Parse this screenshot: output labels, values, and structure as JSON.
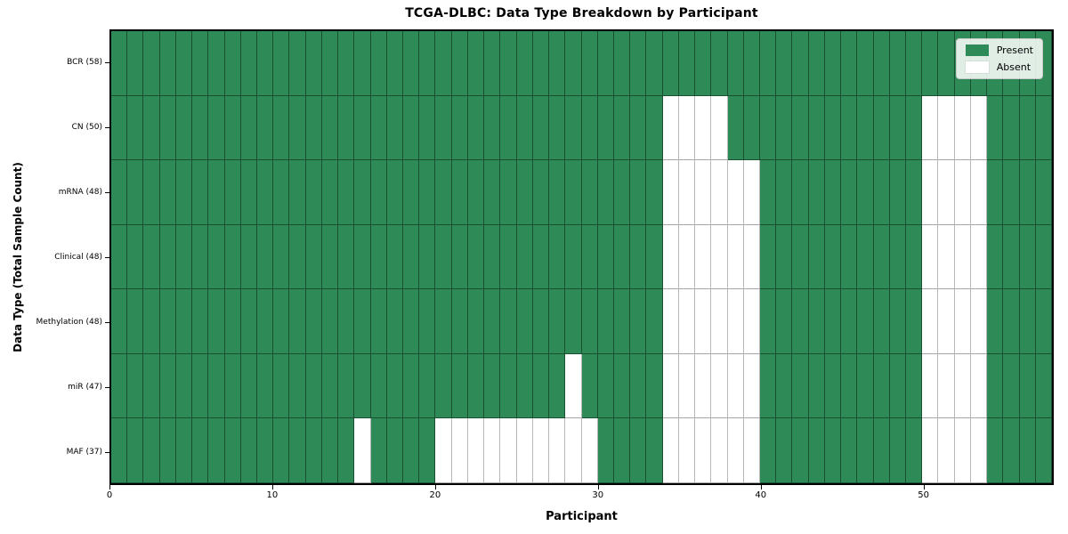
{
  "title": "TCGA-DLBC: Data Type Breakdown by Participant",
  "x_axis": {
    "label": "Participant",
    "tick_labels": [
      "0",
      "10",
      "20",
      "30",
      "40",
      "50"
    ]
  },
  "y_axis": {
    "label": "Data Type (Total Sample Count)"
  },
  "legend": {
    "present_label": "Present",
    "absent_label": "Absent"
  },
  "colors": {
    "present": "#2e8b57",
    "absent": "#ffffff"
  },
  "chart_data": {
    "type": "heatmap",
    "title": "TCGA-DLBC: Data Type Breakdown by Participant",
    "xlabel": "Participant",
    "ylabel": "Data Type (Total Sample Count)",
    "n_participants": 58,
    "x_range": [
      0,
      58
    ],
    "x_ticks": [
      0,
      10,
      20,
      30,
      40,
      50
    ],
    "grid": true,
    "legend_position": "upper right",
    "legend": [
      {
        "label": "Present",
        "color": "#2e8b57"
      },
      {
        "label": "Absent",
        "color": "#ffffff"
      }
    ],
    "rows": [
      {
        "label": "BCR (58)",
        "data_type": "BCR",
        "total_samples": 58,
        "absent_participants": []
      },
      {
        "label": "CN (50)",
        "data_type": "CN",
        "total_samples": 50,
        "absent_participants": [
          34,
          35,
          36,
          37,
          50,
          51,
          52,
          53
        ]
      },
      {
        "label": "mRNA (48)",
        "data_type": "mRNA",
        "total_samples": 48,
        "absent_participants": [
          34,
          35,
          36,
          37,
          38,
          39,
          50,
          51,
          52,
          53
        ]
      },
      {
        "label": "Clinical (48)",
        "data_type": "Clinical",
        "total_samples": 48,
        "absent_participants": [
          34,
          35,
          36,
          37,
          38,
          39,
          50,
          51,
          52,
          53
        ]
      },
      {
        "label": "Methylation (48)",
        "data_type": "Methylation",
        "total_samples": 48,
        "absent_participants": [
          34,
          35,
          36,
          37,
          38,
          39,
          50,
          51,
          52,
          53
        ]
      },
      {
        "label": "miR (47)",
        "data_type": "miR",
        "total_samples": 47,
        "absent_participants": [
          28,
          34,
          35,
          36,
          37,
          38,
          39,
          50,
          51,
          52,
          53
        ]
      },
      {
        "label": "MAF (37)",
        "data_type": "MAF",
        "total_samples": 37,
        "absent_participants": [
          15,
          20,
          21,
          22,
          23,
          24,
          25,
          26,
          27,
          28,
          29,
          34,
          35,
          36,
          37,
          38,
          39,
          50,
          51,
          52,
          53
        ]
      }
    ]
  }
}
